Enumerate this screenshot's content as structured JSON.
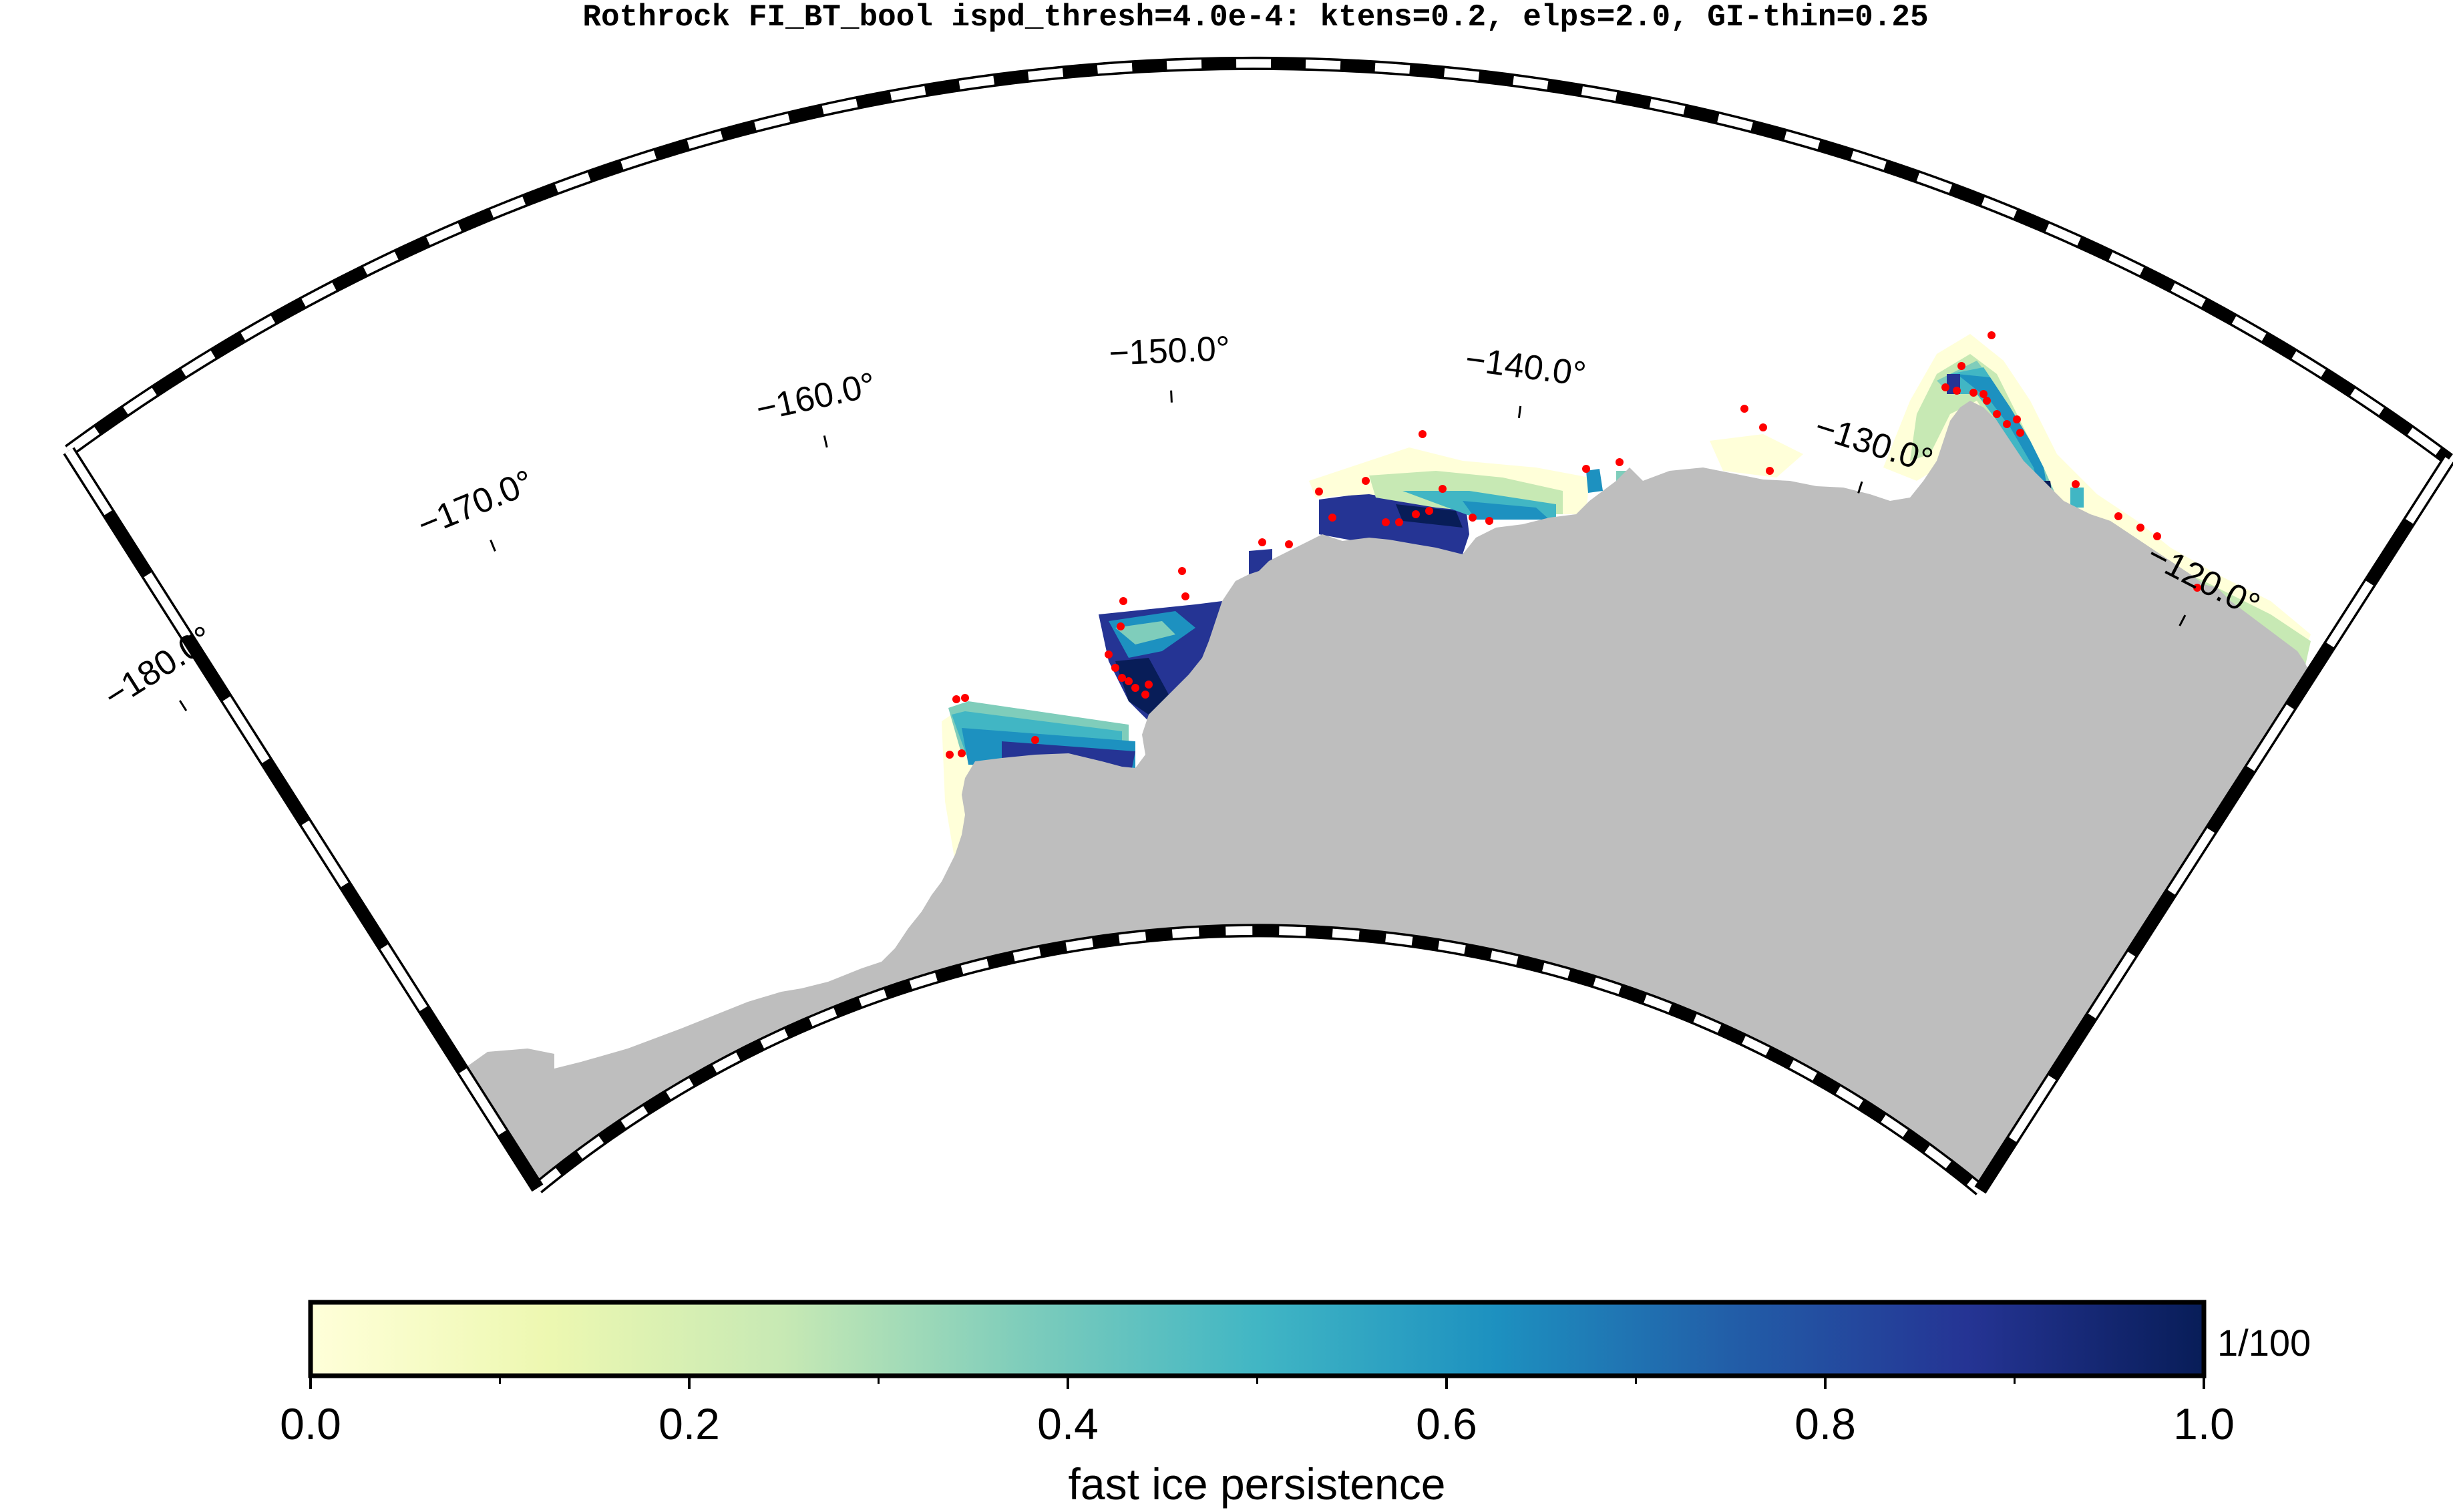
{
  "title": "Rothrock FI_BT_bool ispd_thresh=4.0e-4: ktens=0.2, elps=2.0, GI-thin=0.25",
  "map": {
    "projection": "polar stereographic wedge",
    "longitude_labels": [
      {
        "lon": -180,
        "text": "−180.0°"
      },
      {
        "lon": -170,
        "text": "−170.0°"
      },
      {
        "lon": -160,
        "text": "−160.0°"
      },
      {
        "lon": -150,
        "text": "−150.0°"
      },
      {
        "lon": -140,
        "text": "−140.0°"
      },
      {
        "lon": -130,
        "text": "−130.0°"
      },
      {
        "lon": -120,
        "text": "−120.0°"
      }
    ],
    "lon_range": [
      -180,
      -115
    ],
    "land_color": "#bebebe",
    "grounded_iceberg_marker_color": "#ff0000",
    "frame_style": "black-white alternating"
  },
  "colorbar": {
    "label": "fast ice persistence",
    "scale_annotation": "1/100",
    "ticks": [
      "0.0",
      "0.2",
      "0.4",
      "0.6",
      "0.8",
      "1.0"
    ],
    "range": [
      0.0,
      1.0
    ],
    "colormap": "YlGnBu",
    "colors": [
      "#ffffd9",
      "#edf8b1",
      "#c7e9b4",
      "#7fcdbb",
      "#41b6c4",
      "#1d91c0",
      "#225ea8",
      "#253494",
      "#081d58"
    ]
  }
}
